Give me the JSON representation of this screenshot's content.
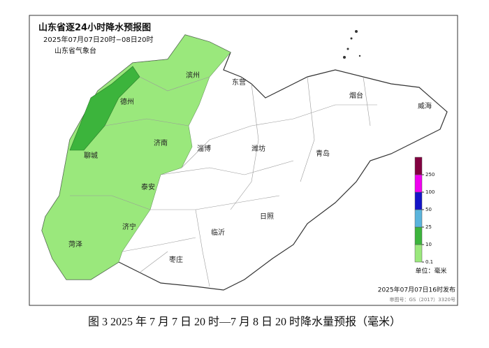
{
  "map": {
    "title": "山东省逐24小时降水预报图",
    "period": "2025年07月07日20时−08日20时",
    "issuer": "山东省气象台",
    "cities": [
      "滨州",
      "东营",
      "烟台",
      "威海",
      "德州",
      "聊城",
      "济南",
      "淄博",
      "潍坊",
      "青岛",
      "泰安",
      "济宁",
      "菏泽",
      "临沂",
      "日照",
      "枣庄"
    ],
    "legend": {
      "unit": "单位：毫米",
      "levels": [
        0.1,
        10,
        25,
        50,
        100,
        250
      ],
      "colors": [
        "#9ae87c",
        "#3cb43c",
        "#5ab4dc",
        "#1414c8",
        "#f000f0",
        "#820040"
      ]
    },
    "release": "2025年07月07日16时发布",
    "approval": "审图号：GS（2017）3320号"
  },
  "caption": "图 3 2025 年 7 月 7 日 20 时—7 月 8 日 20 时降水量预报（毫米）"
}
